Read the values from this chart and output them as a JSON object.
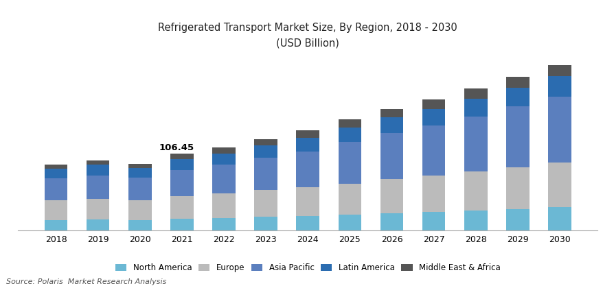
{
  "title_line1": "Refrigerated Transport Market Size, By Region, 2018 - 2030",
  "title_line2": "(USD Billion)",
  "source": "Source: Polaris  Market Research Analysis",
  "years": [
    2018,
    2019,
    2020,
    2021,
    2022,
    2023,
    2024,
    2025,
    2026,
    2027,
    2028,
    2029,
    2030
  ],
  "regions": [
    "North America",
    "Europe",
    "Asia Pacific",
    "Latin America",
    "Middle East & Africa"
  ],
  "colors": [
    "#6BB8D4",
    "#BBBBBB",
    "#5B7FBE",
    "#2B6CB0",
    "#555555"
  ],
  "annotation_year": 2021,
  "annotation_text": "106.45",
  "data": {
    "North America": [
      14,
      15,
      14,
      16,
      17,
      19,
      20,
      22,
      24,
      26,
      28,
      30,
      32
    ],
    "Europe": [
      28,
      29,
      28,
      32,
      34,
      37,
      40,
      43,
      47,
      50,
      54,
      58,
      62
    ],
    "Asia Pacific": [
      30,
      32,
      31,
      36,
      40,
      45,
      50,
      58,
      64,
      70,
      76,
      84,
      92
    ],
    "Latin America": [
      14,
      15,
      14,
      15,
      16,
      17,
      19,
      20,
      22,
      23,
      25,
      26,
      28
    ],
    "Middle East & Africa": [
      5,
      6,
      5,
      7.45,
      8,
      9,
      10,
      11,
      12,
      13,
      14,
      15,
      16
    ]
  },
  "ylim": [
    0,
    240
  ],
  "bar_width": 0.55
}
